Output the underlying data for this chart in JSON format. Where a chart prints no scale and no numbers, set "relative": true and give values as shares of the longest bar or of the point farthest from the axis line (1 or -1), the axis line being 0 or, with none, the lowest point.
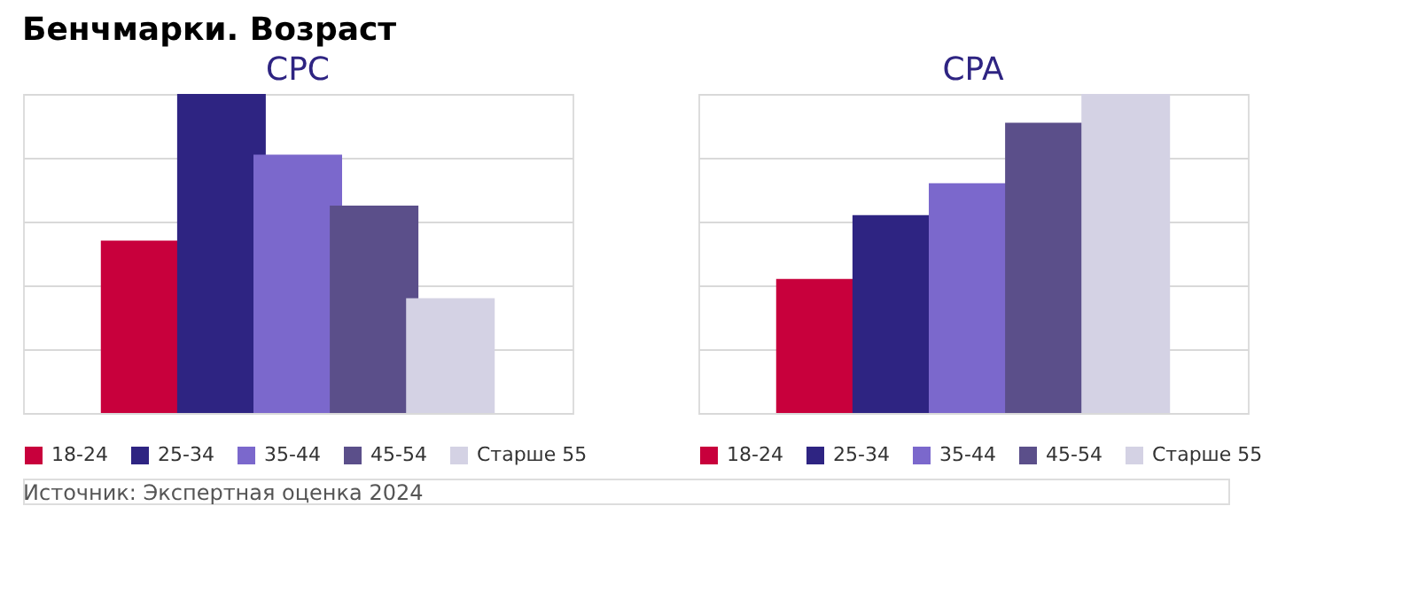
{
  "chart_data": [
    {
      "type": "bar",
      "title": "CPC",
      "annotations": [
        "Бенчмарки. Возраст",
        "Источник: Экспертная оценка 2024"
      ],
      "categories": [
        null
      ],
      "series": [
        {
          "name": "18-24",
          "color": "#c8003c",
          "values": [
            0.54
          ]
        },
        {
          "name": "25-34",
          "color": "#2e2482",
          "values": [
            1
          ]
        },
        {
          "name": "35-44",
          "color": "#7b68cc",
          "values": [
            0.81
          ]
        },
        {
          "name": "45-54",
          "color": "#5b4f8a",
          "values": [
            0.65
          ]
        },
        {
          "name": "Старше 55",
          "color": "#d4d2e4",
          "values": [
            0.36
          ]
        }
      ],
      "relative": true,
      "grid": "y",
      "legend": "bottom",
      "tick_labels": false
    },
    {
      "type": "bar",
      "title": "CPA",
      "categories": [
        null
      ],
      "series": [
        {
          "name": "18-24",
          "color": "#c8003c",
          "values": [
            0.42
          ]
        },
        {
          "name": "25-34",
          "color": "#2e2482",
          "values": [
            0.62
          ]
        },
        {
          "name": "35-44",
          "color": "#7b68cc",
          "values": [
            0.72
          ]
        },
        {
          "name": "45-54",
          "color": "#5b4f8a",
          "values": [
            0.91
          ]
        },
        {
          "name": "Старше 55",
          "color": "#d4d2e4",
          "values": [
            1
          ]
        }
      ],
      "relative": true,
      "grid": "y",
      "legend": "bottom",
      "tick_labels": false
    }
  ]
}
